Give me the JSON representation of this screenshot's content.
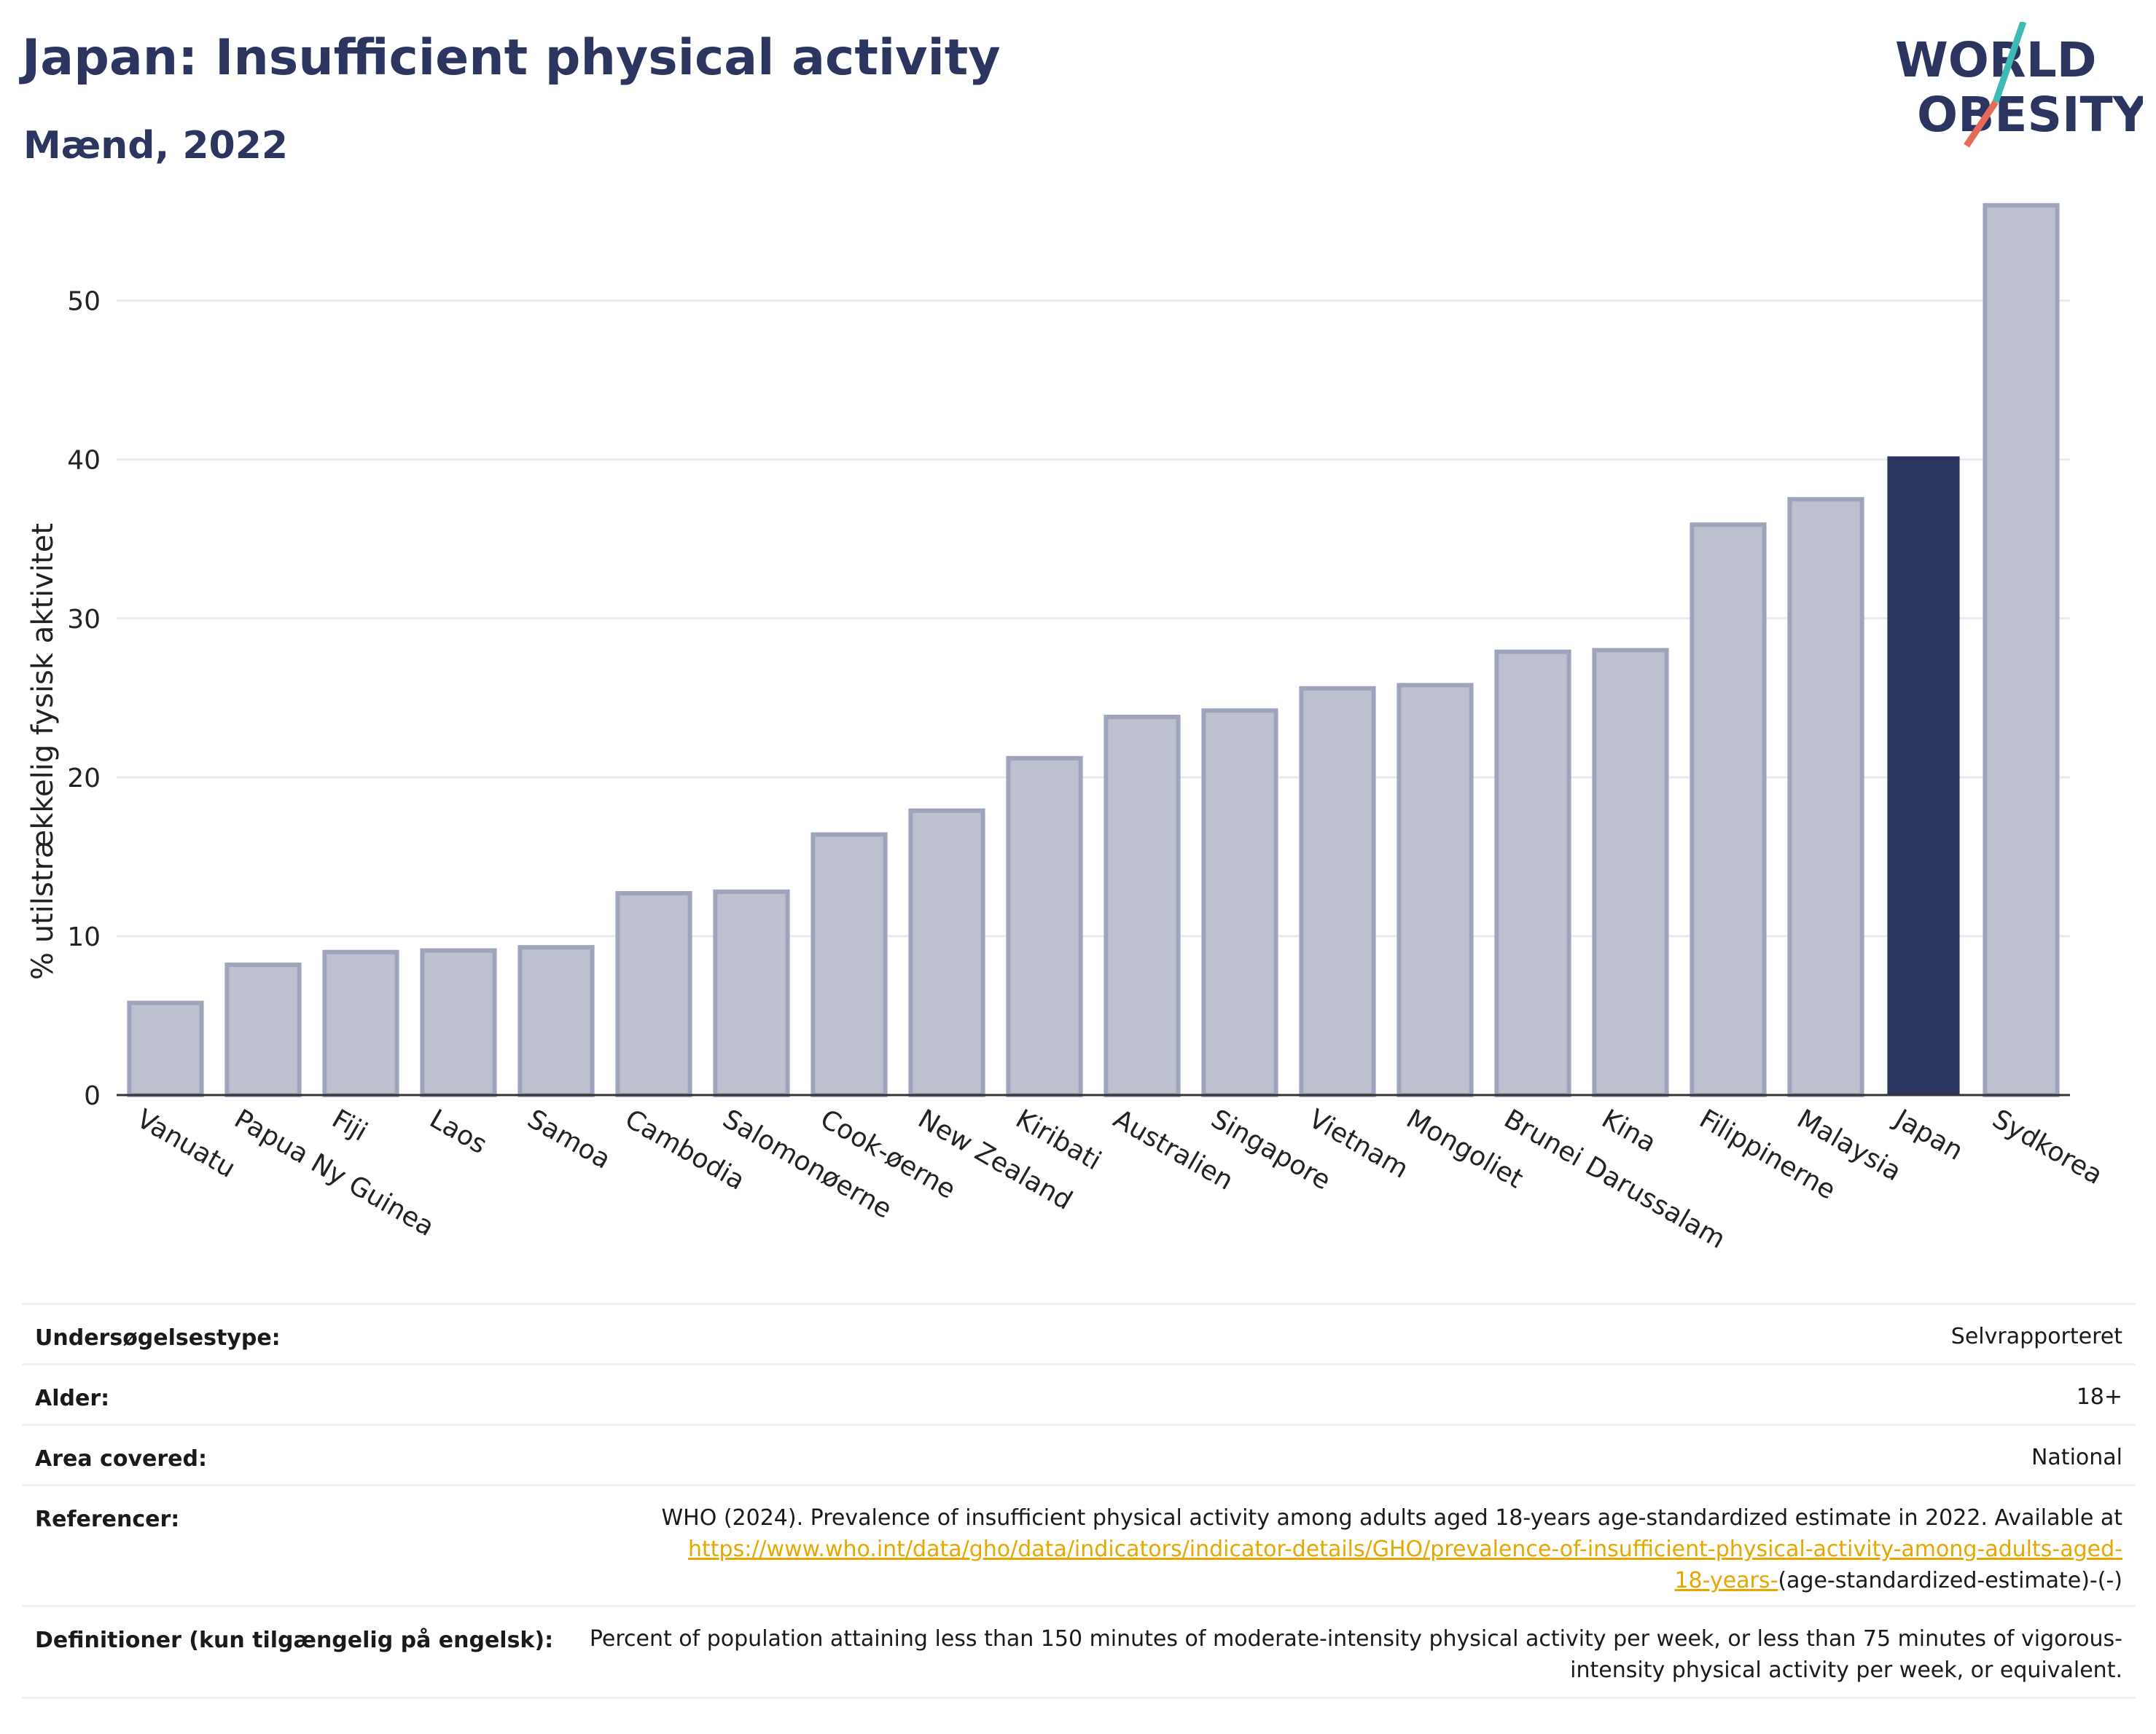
{
  "header": {
    "title": "Japan: Insufficient physical activity",
    "subtitle": "Mænd, 2022"
  },
  "logo": {
    "line1": "WORLD",
    "line2": "OBESITY",
    "accent_teal": "#3fb9b3",
    "accent_coral": "#e56a5a",
    "text_color": "#2b3560"
  },
  "chart_data": {
    "type": "bar",
    "title": "Japan: Insufficient physical activity",
    "subtitle": "Mænd, 2022",
    "xlabel": "",
    "ylabel": "% utilstrækkelig fysisk aktivitet",
    "ylim": [
      0,
      57
    ],
    "yticks": [
      0,
      10,
      20,
      30,
      40,
      50
    ],
    "grid": true,
    "highlight": "Japan",
    "colors": {
      "default_fill": "#bcc0cf",
      "default_stroke": "#9ea4bb",
      "highlight_fill": "#2b3560"
    },
    "categories": [
      "Vanuatu",
      "Papua Ny Guinea",
      "Fiji",
      "Laos",
      "Samoa",
      "Cambodia",
      "Salomonøerne",
      "Cook-øerne",
      "New Zealand",
      "Kiribati",
      "Australien",
      "Singapore",
      "Vietnam",
      "Mongoliet",
      "Brunei Darussalam",
      "Kina",
      "Filippinerne",
      "Malaysia",
      "Japan",
      "Sydkorea"
    ],
    "values": [
      5.8,
      8.2,
      9.0,
      9.1,
      9.3,
      12.7,
      12.8,
      16.4,
      17.9,
      21.2,
      23.8,
      24.2,
      25.6,
      25.8,
      27.9,
      28.0,
      35.9,
      37.5,
      40.2,
      56.0
    ]
  },
  "info_table": [
    {
      "key": "Undersøgelsestype:",
      "value": "Selvrapporteret"
    },
    {
      "key": "Alder:",
      "value": "18+"
    },
    {
      "key": "Area covered:",
      "value": "National"
    },
    {
      "key": "Referencer:",
      "value_line1": "WHO (2024). Prevalence of insufficient physical activity among adults aged 18-years age-standardized estimate in 2022. Available at",
      "link_text_1": "https://www.who.int/data/gho/data/indicators/indicator-details/GHO/prevalence-of-insufficient-physical-activity-among-adults-aged-",
      "link_text_2": "18-years-",
      "value_tail": "(age-standardized-estimate)-(-)"
    },
    {
      "key": "Definitioner (kun tilgængelig på engelsk):",
      "value": "Percent of population attaining less than 150 minutes of moderate-intensity physical activity per week, or less than 75 minutes of vigorous-intensity physical activity per week, or equivalent."
    }
  ]
}
